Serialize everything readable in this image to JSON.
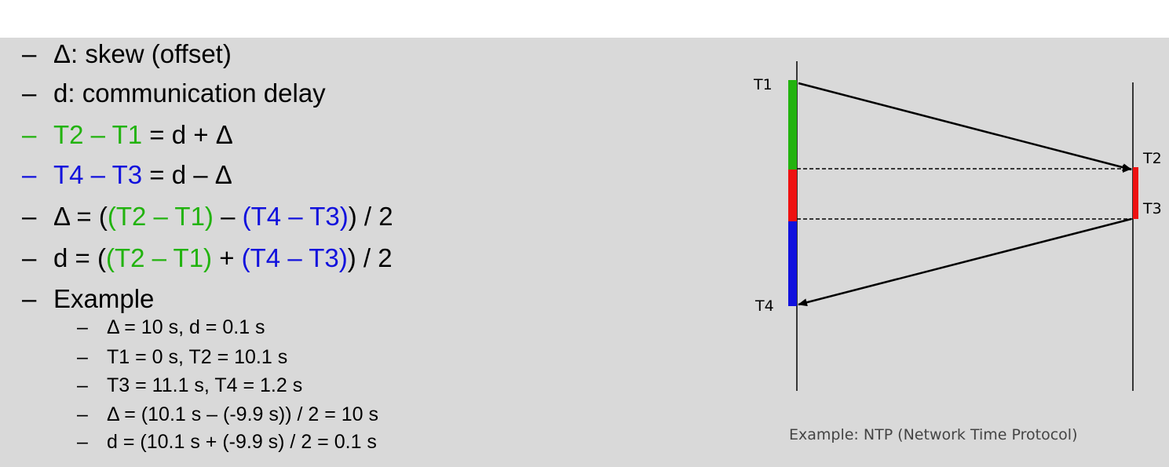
{
  "bullets": {
    "skew": {
      "dash": "–",
      "text": "Δ: skew (offset)"
    },
    "delay": {
      "dash": "–",
      "text": "d: communication delay"
    },
    "eq1": {
      "dash": "–",
      "lhs": "T2 – T1",
      "rhs": " = d + Δ"
    },
    "eq2": {
      "dash": "–",
      "lhs": "T4 – T3",
      "rhs": " = d – Δ"
    },
    "skew_formula": {
      "dash": "–",
      "prefix": "Δ = (",
      "g": "(T2 – T1)",
      "mid": " – ",
      "b": "(T4 – T3)",
      "suffix": ") / 2"
    },
    "delay_formula": {
      "dash": "–",
      "prefix": "d = (",
      "g": "(T2 – T1)",
      "mid": " + ",
      "b": "(T4 – T3)",
      "suffix": ") / 2"
    },
    "example": {
      "dash": "–",
      "text": "Example"
    }
  },
  "example_items": [
    {
      "dash": "–",
      "text": "Δ = 10 s, d = 0.1 s"
    },
    {
      "dash": "–",
      "text": "T1 = 0 s, T2 = 10.1 s"
    },
    {
      "dash": "–",
      "text": "T3 = 11.1 s, T4 = 1.2 s"
    },
    {
      "dash": "–",
      "text": "Δ = (10.1 s – (-9.9 s)) / 2 = 10 s"
    },
    {
      "dash": "–",
      "text": "d = (10.1 s + (-9.9 s) / 2 = 0.1 s"
    }
  ],
  "diagram": {
    "labels": {
      "t1": "T1",
      "t2": "T2",
      "t3": "T3",
      "t4": "T4"
    },
    "caption": "Example:  NTP (Network Time Protocol)",
    "colors": {
      "t1_t2": "#22b30f",
      "t2_t3": "#ee1111",
      "t3_t4": "#1111dd",
      "lines": "#000000"
    }
  }
}
